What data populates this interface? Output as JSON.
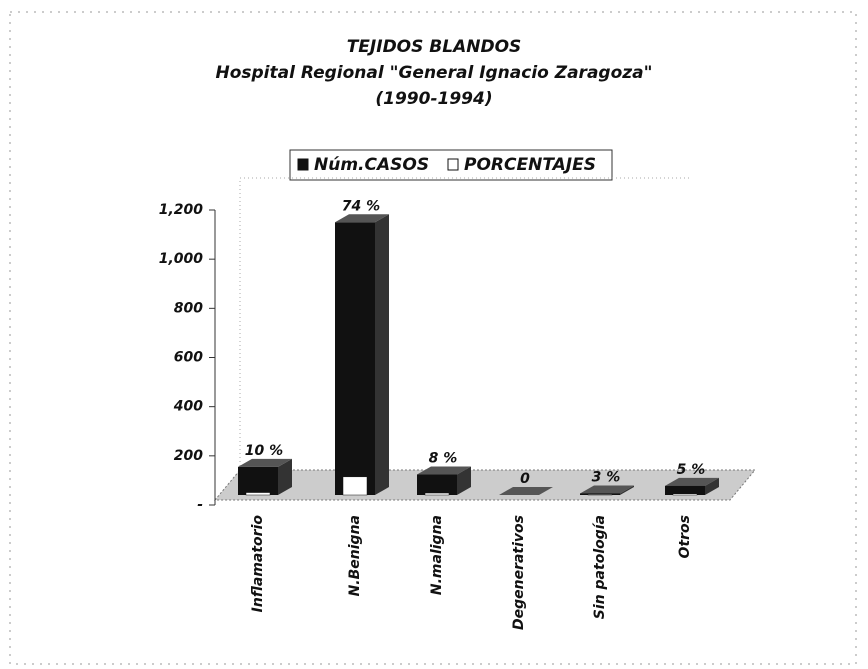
{
  "chart_data": {
    "type": "bar3d",
    "title": "TEJIDOS BLANDOS",
    "subtitle": "Hospital Regional \"General Ignacio Zaragoza\"",
    "period": "(1990-1994)",
    "categories": [
      "Inflamatorio",
      "N.Benigna",
      "N.maligna",
      "Degenerativos",
      "Sin patología",
      "Otros"
    ],
    "series": [
      {
        "name": "Núm.CASOS",
        "color": "#111111",
        "values": [
          155,
          1150,
          124,
          5,
          47,
          78
        ]
      },
      {
        "name": "PORCENTAJES",
        "color": "#ffffff",
        "values": [
          10,
          74,
          8,
          0,
          3,
          5
        ],
        "value_labels": [
          "10 %",
          "74 %",
          "8 %",
          "0",
          "3 %",
          "5 %"
        ]
      }
    ],
    "ylim": [
      0,
      1200
    ],
    "yticks": [
      {
        "value": 0,
        "label": "-"
      },
      200,
      400,
      600,
      800,
      {
        "value": 1000,
        "label": "1,000"
      },
      {
        "value": 1200,
        "label": "1,200"
      }
    ],
    "grid": false,
    "legend": "top"
  }
}
